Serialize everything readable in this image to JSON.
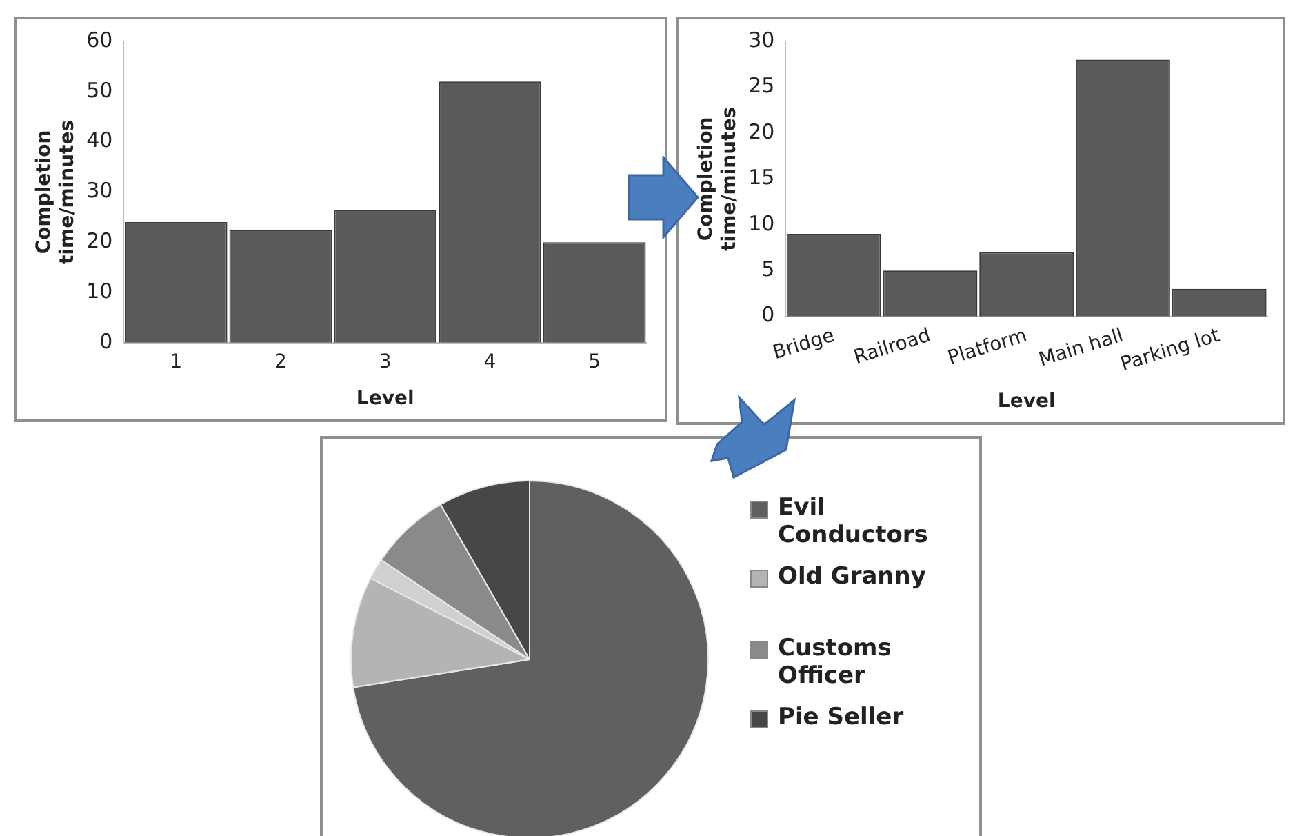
{
  "chart_data": [
    {
      "type": "bar",
      "categories": [
        "1",
        "2",
        "3",
        "4",
        "5"
      ],
      "values": [
        24,
        22.5,
        26.5,
        52,
        20
      ],
      "color": "#5a5a5a",
      "xlabel": "Level",
      "ylabel": "Completion time/minutes",
      "ylim": [
        0,
        60
      ],
      "yticks": [
        0,
        10,
        20,
        30,
        40,
        50,
        60
      ],
      "grid": false,
      "legend": false
    },
    {
      "type": "bar",
      "categories": [
        "Bridge",
        "Railroad",
        "Platform",
        "Main hall",
        "Parking lot"
      ],
      "values": [
        9,
        5,
        7,
        28,
        3
      ],
      "color": "#5a5a5a",
      "xlabel": "Level",
      "ylabel": "Completion time/minutes",
      "ylim": [
        0,
        30
      ],
      "yticks": [
        0,
        5,
        10,
        15,
        20,
        25,
        30
      ],
      "grid": false,
      "legend": false
    },
    {
      "type": "pie",
      "categories": [
        "Evil Conductors",
        "Old Granny",
        null,
        "Customs Officer",
        "Pie Seller"
      ],
      "values": [
        72.5,
        10,
        1.9,
        7.3,
        8.3
      ],
      "colors": [
        "#606060",
        "#b4b4b4",
        "#d0d0d0",
        "#8a8a8a",
        "#474747"
      ],
      "legend": "right"
    }
  ]
}
